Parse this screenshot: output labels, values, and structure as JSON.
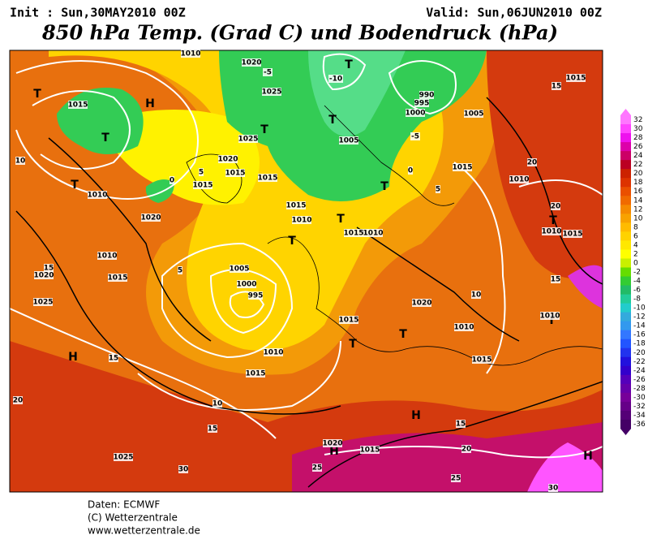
{
  "header": {
    "init": "Init : Sun,30MAY2010 00Z",
    "valid": "Valid: Sun,06JUN2010 00Z",
    "title": "850 hPa Temp. (Grad C) und Bodendruck (hPa)"
  },
  "legend": {
    "levels": [
      32,
      30,
      28,
      26,
      24,
      22,
      20,
      18,
      16,
      14,
      12,
      10,
      8,
      6,
      4,
      2,
      0,
      -2,
      -4,
      -6,
      -8,
      -10,
      -12,
      -14,
      -16,
      -18,
      -20,
      -22,
      -24,
      -26,
      -28,
      -30,
      -32,
      -34,
      -36
    ],
    "colors": [
      "#ff77ff",
      "#ff44ff",
      "#ee11ee",
      "#dd00aa",
      "#cc0066",
      "#bb0022",
      "#cc2200",
      "#dd3300",
      "#ea5000",
      "#f06a00",
      "#f58a00",
      "#f8a200",
      "#ffbb00",
      "#ffd200",
      "#ffe800",
      "#ffff00",
      "#c8f000",
      "#66dd00",
      "#33cc33",
      "#22bb66",
      "#22cc99",
      "#22cccc",
      "#33aadd",
      "#3399ee",
      "#3377ff",
      "#2255ff",
      "#2233ee",
      "#2211dd",
      "#3300cc",
      "#5500bb",
      "#6600aa",
      "#770099",
      "#660088",
      "#550077",
      "#440066"
    ]
  },
  "map": {
    "labels": [
      "H",
      "H",
      "H",
      "H",
      "H",
      "T",
      "T",
      "T",
      "T",
      "T",
      "T",
      "T",
      "T",
      "T",
      "T",
      "T",
      "T",
      "T",
      "1015",
      "1010",
      "1020",
      "1010",
      "1015",
      "1020",
      "1025",
      "1005",
      "1000",
      "995",
      "1010",
      "1015",
      "1025",
      "1015",
      "1020",
      "1015",
      "1020",
      "1010",
      "1015",
      "1010",
      "1015",
      "1005",
      "1000",
      "995",
      "990",
      "1005",
      "1025",
      "1020",
      "1020",
      "1015",
      "1015",
      "1015",
      "1010",
      "1015",
      "1010",
      "1010",
      "1010",
      "1015",
      "1015",
      "1015",
      "1025",
      "1010",
      "15",
      "20",
      "20",
      "15",
      "10",
      "15",
      "20",
      "30",
      "25",
      "20",
      "25",
      "30",
      "15",
      "10",
      "15",
      "5",
      "0",
      "5",
      "0",
      "-5",
      "-10",
      "-5",
      "5",
      "15",
      "10"
    ]
  },
  "footer": {
    "lines": [
      "Daten: ECMWF",
      "(C) Wetterzentrale",
      "www.wetterzentrale.de"
    ]
  }
}
